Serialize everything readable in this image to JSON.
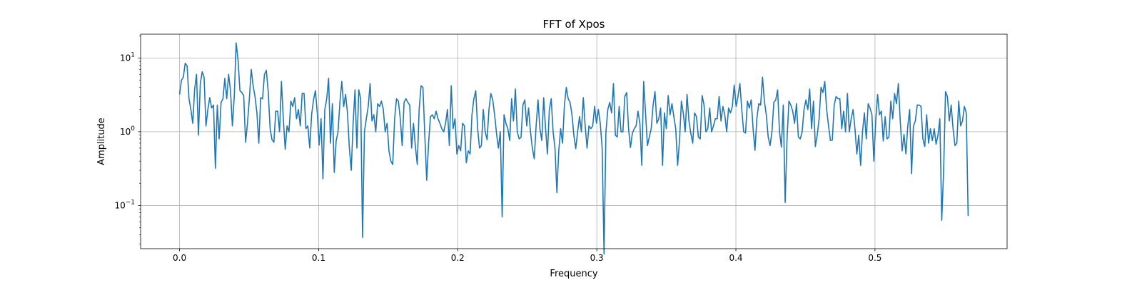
{
  "chart_data": {
    "type": "line",
    "title": "FFT of Xpos",
    "xlabel": "Frequency",
    "ylabel": "Amplitude",
    "xlim": [
      -0.028,
      0.595
    ],
    "ylim": [
      0.026,
      21
    ],
    "yscale": "log",
    "grid": true,
    "line_color": "#1f77b4",
    "x_ticks": [
      {
        "value": 0.0,
        "label": "0.0"
      },
      {
        "value": 0.1,
        "label": "0.1"
      },
      {
        "value": 0.2,
        "label": "0.2"
      },
      {
        "value": 0.3,
        "label": "0.3"
      },
      {
        "value": 0.4,
        "label": "0.4"
      },
      {
        "value": 0.5,
        "label": "0.5"
      }
    ],
    "y_ticks": [
      {
        "value": 0.1,
        "base": "10",
        "exp": "−1"
      },
      {
        "value": 1,
        "base": "10",
        "exp": "0"
      },
      {
        "value": 10,
        "base": "10",
        "exp": "1"
      }
    ],
    "series": [
      {
        "x_start": 0.0,
        "x_end": 0.567,
        "values": [
          3.2,
          5.0,
          5.5,
          8.5,
          7.8,
          2.8,
          2.0,
          1.3,
          3.8,
          6.0,
          0.9,
          4.5,
          6.5,
          5.5,
          1.2,
          2.0,
          2.9,
          2.1,
          2.3,
          0.32,
          2.3,
          0.8,
          2.5,
          2.8,
          5.3,
          2.8,
          6.0,
          3.6,
          1.2,
          3.0,
          16.0,
          9.5,
          3.6,
          3.4,
          3.1,
          0.72,
          1.3,
          2.8,
          7.0,
          4.2,
          3.0,
          1.8,
          0.7,
          2.9,
          2.8,
          6.0,
          6.8,
          3.5,
          1.1,
          0.78,
          0.72,
          1.9,
          1.9,
          1.0,
          4.8,
          1.5,
          0.58,
          1.2,
          1.0,
          2.6,
          2.2,
          2.9,
          1.5,
          2.0,
          1.2,
          3.3,
          3.3,
          1.1,
          1.2,
          0.6,
          1.7,
          2.7,
          3.6,
          1.8,
          0.66,
          1.5,
          0.23,
          2.0,
          2.8,
          5.3,
          0.7,
          2.4,
          0.28,
          0.75,
          1.0,
          2.5,
          4.8,
          2.2,
          3.2,
          1.8,
          0.6,
          0.3,
          1.3,
          3.7,
          0.6,
          3.7,
          2.8,
          0.037,
          1.0,
          1.5,
          2.2,
          4.5,
          1.4,
          1.7,
          1.0,
          2.4,
          2.2,
          2.6,
          2.0,
          1.0,
          1.3,
          0.55,
          0.4,
          0.36,
          1.5,
          2.8,
          2.6,
          1.5,
          0.65,
          2.5,
          2.8,
          2.5,
          2.3,
          0.6,
          1.3,
          0.63,
          0.36,
          2.0,
          4.2,
          4.0,
          0.9,
          0.22,
          0.7,
          1.6,
          1.7,
          1.5,
          1.9,
          1.5,
          1.3,
          1.1,
          1.0,
          1.3,
          2.0,
          0.65,
          4.2,
          1.1,
          1.5,
          0.5,
          0.65,
          0.55,
          1.3,
          1.2,
          0.38,
          0.55,
          0.5,
          1.7,
          2.8,
          3.6,
          1.1,
          0.6,
          0.65,
          2.0,
          1.0,
          0.78,
          2.0,
          3.3,
          2.7,
          1.7,
          0.95,
          0.6,
          1.0,
          0.07,
          1.7,
          1.3,
          1.1,
          0.76,
          2.8,
          1.4,
          3.8,
          1.0,
          0.8,
          0.84,
          2.3,
          2.7,
          1.2,
          2.1,
          1.0,
          0.6,
          0.43,
          1.2,
          2.7,
          1.1,
          0.76,
          2.9,
          1.1,
          0.5,
          2.0,
          2.8,
          1.0,
          0.6,
          0.15,
          0.55,
          1.1,
          0.7,
          2.3,
          4.0,
          2.8,
          2.5,
          1.7,
          0.9,
          0.59,
          1.0,
          1.6,
          1.0,
          2.9,
          1.2,
          0.6,
          1.2,
          1.1,
          1.2,
          2.2,
          1.3,
          2.0,
          1.3,
          0.6,
          0.022,
          1.0,
          2.0,
          2.5,
          1.8,
          4.5,
          0.9,
          0.85,
          2.2,
          1.0,
          1.0,
          3.0,
          3.4,
          1.1,
          0.61,
          0.95,
          1.1,
          1.2,
          1.9,
          1.3,
          0.35,
          4.8,
          1.8,
          0.65,
          0.85,
          1.1,
          2.3,
          3.5,
          1.3,
          1.5,
          2.1,
          0.35,
          1.8,
          1.1,
          3.1,
          1.7,
          2.4,
          1.6,
          1.1,
          0.35,
          0.75,
          2.6,
          1.8,
          1.0,
          3.2,
          1.4,
          0.95,
          0.7,
          1.8,
          1.6,
          0.85,
          0.8,
          3.1,
          2.3,
          1.0,
          1.1,
          2.1,
          1.0,
          1.2,
          1.5,
          1.5,
          3.0,
          1.4,
          2.2,
          1.7,
          1.0,
          2.1,
          1.8,
          2.2,
          4.3,
          2.2,
          3.0,
          4.5,
          2.0,
          1.0,
          0.96,
          2.6,
          2.1,
          2.7,
          1.1,
          0.56,
          1.5,
          2.4,
          2.3,
          5.5,
          2.6,
          1.7,
          0.85,
          0.65,
          1.0,
          2.5,
          2.7,
          3.7,
          1.0,
          0.62,
          2.3,
          0.11,
          0.8,
          2.6,
          2.3,
          1.9,
          1.3,
          2.4,
          0.85,
          0.8,
          1.0,
          2.0,
          2.7,
          2.0,
          3.8,
          1.1,
          2.6,
          0.63,
          0.9,
          1.5,
          4.0,
          3.4,
          4.8,
          2.0,
          1.2,
          0.76,
          0.77,
          2.3,
          3.0,
          2.8,
          2.8,
          1.1,
          1.9,
          1.0,
          3.3,
          1.0,
          1.5,
          2.0,
          1.1,
          0.5,
          0.9,
          0.35,
          1.0,
          1.8,
          0.8,
          2.4,
          2.1,
          1.7,
          0.4,
          1.4,
          3.2,
          1.7,
          1.9,
          0.75,
          1.6,
          0.8,
          0.85,
          2.6,
          1.5,
          3.3,
          2.4,
          4.5,
          1.4,
          0.55,
          0.92,
          0.5,
          1.2,
          2.0,
          0.27,
          1.2,
          1.4,
          2.3,
          2.3,
          2.2,
          0.8,
          0.63,
          1.7,
          0.7,
          1.1,
          0.76,
          1.1,
          0.68,
          0.9,
          1.5,
          0.063,
          0.3,
          3.5,
          3.0,
          1.4,
          2.3,
          1.1,
          0.65,
          0.7,
          2.6,
          1.2,
          1.4,
          2.2,
          1.8,
          0.072
        ]
      }
    ]
  }
}
